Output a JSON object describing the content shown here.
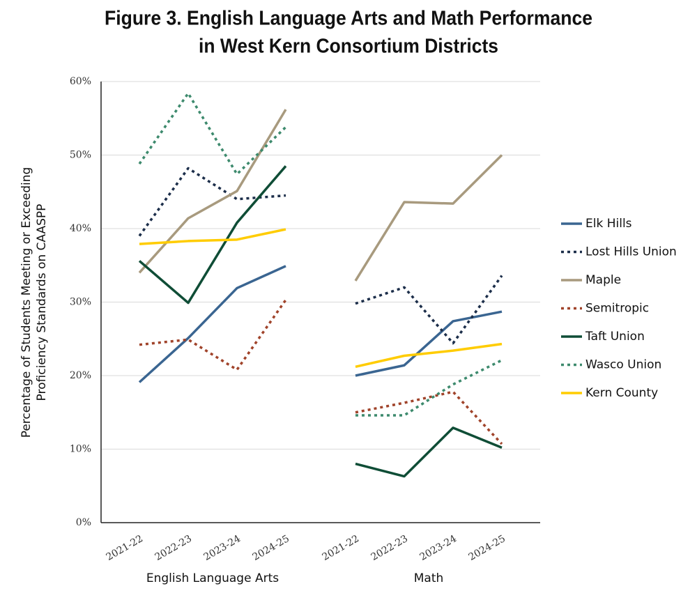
{
  "chart_data": {
    "type": "line",
    "title": [
      "Figure 3. English Language Arts and Math Performance",
      "in West Kern Consortium Districts"
    ],
    "y_label": [
      "Percentage of Students Meeting or Exceeding",
      "Proficiency Standards on CAASPP"
    ],
    "groups": [
      {
        "label": "English Language Arts",
        "categories": [
          "2021-22",
          "2022-23",
          "2023-24",
          "2024-25"
        ]
      },
      {
        "label": "Math",
        "categories": [
          "2021-22",
          "2022-23",
          "2023-24",
          "2024-25"
        ]
      }
    ],
    "ylim": [
      0,
      60
    ],
    "yticks": [
      {
        "value": 0,
        "label": "0%"
      },
      {
        "value": 10,
        "label": "10%"
      },
      {
        "value": 20,
        "label": "20%"
      },
      {
        "value": 30,
        "label": "30%"
      },
      {
        "value": 40,
        "label": "40%"
      },
      {
        "value": 50,
        "label": "50%"
      },
      {
        "value": 60,
        "label": "60%"
      }
    ],
    "grid": true,
    "legend": "right",
    "series": [
      {
        "name": "Elk Hills",
        "color": "#3a6591",
        "dashed": false,
        "values": [
          [
            19.1,
            25.1,
            31.9,
            34.9
          ],
          [
            20.0,
            21.4,
            27.4,
            28.7
          ]
        ]
      },
      {
        "name": "Lost Hills Union",
        "color": "#1c2e4a",
        "dashed": true,
        "values": [
          [
            39.0,
            48.2,
            44.0,
            44.5
          ],
          [
            29.8,
            32.0,
            24.4,
            33.6
          ]
        ]
      },
      {
        "name": "Maple",
        "color": "#a89a7e",
        "dashed": false,
        "values": [
          [
            34.0,
            41.4,
            45.1,
            56.2
          ],
          [
            32.9,
            43.6,
            43.4,
            50.0
          ]
        ]
      },
      {
        "name": "Semitropic",
        "color": "#a0432a",
        "dashed": true,
        "values": [
          [
            24.2,
            24.9,
            20.8,
            30.3
          ],
          [
            15.0,
            16.3,
            17.8,
            10.7
          ]
        ]
      },
      {
        "name": "Taft Union",
        "color": "#0f4d36",
        "dashed": false,
        "values": [
          [
            35.6,
            29.9,
            40.8,
            48.5
          ],
          [
            8.0,
            6.3,
            12.9,
            10.2
          ]
        ]
      },
      {
        "name": "Wasco Union",
        "color": "#3d8a6d",
        "dashed": true,
        "values": [
          [
            48.8,
            58.4,
            47.4,
            53.8
          ],
          [
            14.6,
            14.6,
            18.8,
            22.1
          ]
        ]
      },
      {
        "name": "Kern County",
        "color": "#ffcc00",
        "dashed": false,
        "values": [
          [
            37.9,
            38.3,
            38.5,
            39.9
          ],
          [
            21.2,
            22.7,
            23.4,
            24.3
          ]
        ]
      }
    ]
  }
}
